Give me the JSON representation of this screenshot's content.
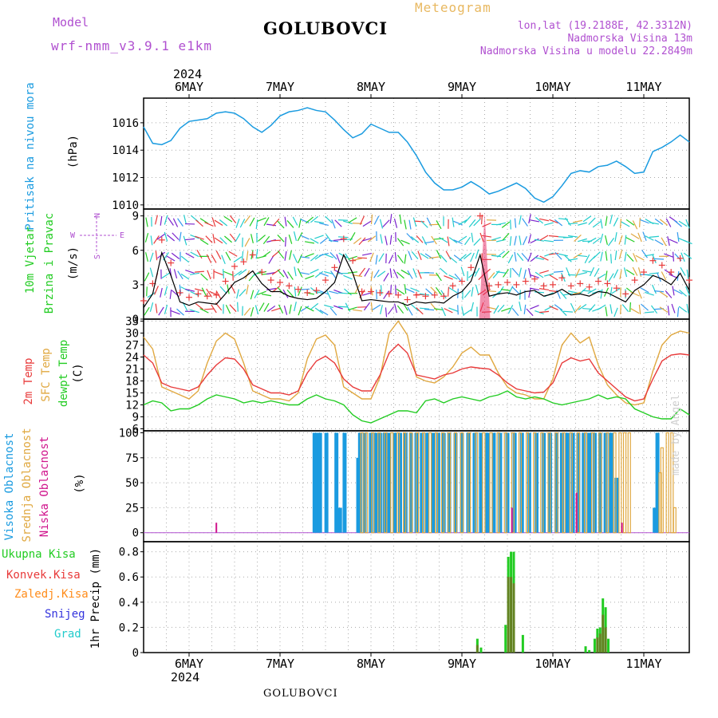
{
  "header": {
    "model_label": "Model",
    "model_name": "wrf-nmm_v3.9.1 e1km",
    "station": "GOLUBOVCI",
    "meteogram_label": "Meteogram",
    "lonlat": "lon,lat (19.2188E, 42.3312N)",
    "altitude": "Nadmorska Visina 13m",
    "model_altitude": "Nadmorska Visina u modelu 22.2849m",
    "year": "2024",
    "footer_station": "GOLUBOVCI",
    "watermark": "made by Angel"
  },
  "colors": {
    "pressure": "#1a9be0",
    "wind_speed": "#000000",
    "gust": "#e83a3a",
    "temp2m": "#e83a3a",
    "sfc_temp": "#e0a840",
    "dewpt": "#22cc22",
    "cloud_high": "#1a9be0",
    "cloud_mid": "#e0a840",
    "cloud_low": "#d0148c",
    "precip_total": "#22cc22",
    "precip_conv": "#e83a3a",
    "precip_frozen": "#ff8c1a",
    "precip_snow": "#3333dd",
    "precip_graupel": "#22cccc",
    "purple_text": "#b050d0",
    "gold_text": "#e8b860"
  },
  "chart_data": [
    {
      "type": "line",
      "name": "pressure",
      "ylabel_main": "Pritisak na nivou mora",
      "unit": "(hPa)",
      "ylim": [
        1009.7,
        1017.8
      ],
      "yticks": [
        1010,
        1012,
        1014,
        1016
      ],
      "x_days": [
        "6MAY",
        "7MAY",
        "8MAY",
        "9MAY",
        "10MAY",
        "11MAY"
      ],
      "x": [
        -0.5,
        -0.4,
        -0.3,
        -0.2,
        -0.1,
        0,
        0.1,
        0.2,
        0.3,
        0.4,
        0.5,
        0.6,
        0.7,
        0.8,
        0.9,
        1.0,
        1.1,
        1.2,
        1.3,
        1.4,
        1.5,
        1.6,
        1.7,
        1.8,
        1.9,
        2.0,
        2.1,
        2.2,
        2.3,
        2.4,
        2.5,
        2.6,
        2.7,
        2.8,
        2.9,
        3.0,
        3.1,
        3.2,
        3.3,
        3.4,
        3.5,
        3.6,
        3.7,
        3.8,
        3.9,
        4.0,
        4.1,
        4.2,
        4.3,
        4.4,
        4.5,
        4.6,
        4.7,
        4.8,
        4.9,
        5.0,
        5.1,
        5.2,
        5.3,
        5.4,
        5.5
      ],
      "values": [
        1015.7,
        1014.5,
        1014.4,
        1014.7,
        1015.6,
        1016.1,
        1016.2,
        1016.3,
        1016.7,
        1016.8,
        1016.7,
        1016.3,
        1015.7,
        1015.3,
        1015.8,
        1016.5,
        1016.8,
        1016.9,
        1017.1,
        1016.9,
        1016.8,
        1016.2,
        1015.5,
        1014.9,
        1015.2,
        1015.9,
        1015.6,
        1015.3,
        1015.3,
        1014.6,
        1013.6,
        1012.4,
        1011.6,
        1011.1,
        1011.1,
        1011.3,
        1011.7,
        1011.3,
        1010.8,
        1011.0,
        1011.3,
        1011.6,
        1011.2,
        1010.5,
        1010.2,
        1010.6,
        1011.4,
        1012.3,
        1012.5,
        1012.4,
        1012.8,
        1012.9,
        1013.2,
        1012.8,
        1012.3,
        1012.4,
        1013.9,
        1014.2,
        1014.6,
        1015.1,
        1014.6
      ]
    },
    {
      "type": "line",
      "name": "wind",
      "ylabel_main": "10m Vjetar",
      "ylabel_sub": "Brzina i Pravac",
      "unit": "(m/s)",
      "compass_n": "N",
      "compass_w": "W",
      "compass_e": "E",
      "compass_s": "S",
      "ylim": [
        0,
        9.6
      ],
      "yticks": [
        0,
        3,
        6,
        9
      ],
      "x": [
        -0.5,
        -0.4,
        -0.3,
        -0.2,
        -0.1,
        0,
        0.1,
        0.2,
        0.3,
        0.4,
        0.5,
        0.6,
        0.7,
        0.8,
        0.9,
        1.0,
        1.1,
        1.2,
        1.3,
        1.4,
        1.5,
        1.6,
        1.7,
        1.8,
        1.9,
        2.0,
        2.1,
        2.2,
        2.3,
        2.4,
        2.5,
        2.6,
        2.7,
        2.8,
        2.9,
        3.0,
        3.1,
        3.2,
        3.3,
        3.4,
        3.5,
        3.6,
        3.7,
        3.8,
        3.9,
        4.0,
        4.1,
        4.2,
        4.3,
        4.4,
        4.5,
        4.6,
        4.7,
        4.8,
        4.9,
        5.0,
        5.1,
        5.2,
        5.3,
        5.4,
        5.5
      ],
      "speed": [
        1.0,
        2.2,
        5.8,
        3.8,
        1.5,
        1.2,
        1.5,
        1.4,
        1.3,
        2.2,
        3.2,
        3.6,
        4.2,
        3.1,
        2.4,
        2.4,
        2.0,
        1.8,
        1.7,
        1.8,
        2.4,
        3.2,
        5.6,
        4.0,
        1.6,
        1.7,
        1.6,
        1.5,
        1.5,
        1.2,
        1.5,
        1.4,
        1.5,
        1.4,
        2.0,
        2.4,
        3.3,
        5.6,
        2.0,
        2.2,
        2.3,
        2.1,
        2.4,
        2.5,
        2.0,
        2.2,
        2.6,
        2.1,
        2.2,
        2.0,
        2.4,
        2.3,
        1.9,
        1.5,
        2.5,
        3.0,
        3.8,
        3.5,
        3.0,
        4.0,
        2.5
      ],
      "gust": [
        1.6,
        3.1,
        6.9,
        4.9,
        2.3,
        1.9,
        2.2,
        2.0,
        2.1,
        3.3,
        4.6,
        5.0,
        5.6,
        4.1,
        3.4,
        3.2,
        2.9,
        2.6,
        2.3,
        2.5,
        3.4,
        4.5,
        7.0,
        5.1,
        2.4,
        2.4,
        2.3,
        2.2,
        2.1,
        1.7,
        2.1,
        2.0,
        2.1,
        2.0,
        2.9,
        3.3,
        4.5,
        9.0,
        2.9,
        3.0,
        3.2,
        3.0,
        3.3,
        3.5,
        2.9,
        3.0,
        3.6,
        2.9,
        3.1,
        2.8,
        3.3,
        3.1,
        2.7,
        2.2,
        3.4,
        4.1,
        5.1,
        4.7,
        4.1,
        5.3,
        3.4
      ]
    },
    {
      "type": "line",
      "name": "temperature",
      "ylabel_a": "2m Temp",
      "ylabel_b": "SFC Temp",
      "ylabel_c": "dewpt Temp",
      "unit": "(C)",
      "ylim": [
        5.5,
        33.5
      ],
      "yticks": [
        6,
        9,
        12,
        15,
        18,
        21,
        24,
        27,
        30,
        33
      ],
      "x": [
        -0.5,
        -0.4,
        -0.3,
        -0.2,
        -0.1,
        0,
        0.1,
        0.2,
        0.3,
        0.4,
        0.5,
        0.6,
        0.7,
        0.8,
        0.9,
        1.0,
        1.1,
        1.2,
        1.3,
        1.4,
        1.5,
        1.6,
        1.7,
        1.8,
        1.9,
        2.0,
        2.1,
        2.2,
        2.3,
        2.4,
        2.5,
        2.6,
        2.7,
        2.8,
        2.9,
        3.0,
        3.1,
        3.2,
        3.3,
        3.4,
        3.5,
        3.6,
        3.7,
        3.8,
        3.9,
        4.0,
        4.1,
        4.2,
        4.3,
        4.4,
        4.5,
        4.6,
        4.7,
        4.8,
        4.9,
        5.0,
        5.1,
        5.2,
        5.3,
        5.4,
        5.5
      ],
      "temp2m": [
        24.5,
        22.5,
        17.5,
        16.5,
        16.0,
        15.5,
        16.5,
        19.5,
        22.0,
        23.8,
        23.5,
        21.0,
        17.0,
        16.0,
        15.0,
        15.0,
        14.5,
        15.5,
        20.0,
        23.0,
        24.2,
        22.5,
        18.5,
        16.5,
        15.5,
        15.5,
        19.5,
        25.0,
        27.2,
        25.0,
        19.5,
        19.0,
        18.5,
        19.5,
        20.0,
        21.0,
        21.5,
        21.2,
        21.0,
        19.5,
        17.5,
        16.0,
        15.5,
        15.0,
        15.2,
        17.5,
        22.5,
        23.8,
        23.0,
        23.5,
        20.0,
        18.0,
        16.0,
        14.0,
        13.0,
        13.5,
        18.5,
        23.0,
        24.5,
        24.8,
        24.5
      ],
      "sfc": [
        29.0,
        26.0,
        16.5,
        15.5,
        14.5,
        13.5,
        15.5,
        22.5,
        28.0,
        30.0,
        28.5,
        22.5,
        15.5,
        14.5,
        13.5,
        13.5,
        13.0,
        15.0,
        23.5,
        28.5,
        29.5,
        27.0,
        16.5,
        15.0,
        13.5,
        13.5,
        19.0,
        30.0,
        33.0,
        29.5,
        19.0,
        18.0,
        17.5,
        19.0,
        21.5,
        25.0,
        26.5,
        24.5,
        24.5,
        20.0,
        16.5,
        15.0,
        14.5,
        13.5,
        13.5,
        18.5,
        27.0,
        30.0,
        27.5,
        29.0,
        22.0,
        17.0,
        14.5,
        12.5,
        12.0,
        12.5,
        20.5,
        27.0,
        29.5,
        30.5,
        30.0
      ],
      "dewpt": [
        12.0,
        13.0,
        12.5,
        10.5,
        11.0,
        11.0,
        12.0,
        13.5,
        14.5,
        14.0,
        13.5,
        12.5,
        13.0,
        12.5,
        13.0,
        12.5,
        12.0,
        12.0,
        13.5,
        14.5,
        13.5,
        13.0,
        12.0,
        9.5,
        8.0,
        7.5,
        8.5,
        9.5,
        10.5,
        10.5,
        10.0,
        13.0,
        13.5,
        12.5,
        13.5,
        14.0,
        13.5,
        13.0,
        14.0,
        14.5,
        15.5,
        14.0,
        13.5,
        14.0,
        13.5,
        12.5,
        12.0,
        12.5,
        13.0,
        13.5,
        14.5,
        13.5,
        14.0,
        13.5,
        11.0,
        10.0,
        9.0,
        8.5,
        8.5,
        11.0,
        9.5
      ]
    },
    {
      "type": "bar",
      "name": "cloud_cover",
      "ylabel_a": "Visoka Oblacnost",
      "ylabel_b": "Srednja Oblacnost",
      "ylabel_c": "Niska Oblacnost",
      "unit": "(%)",
      "ylim": [
        -9,
        102
      ],
      "yticks": [
        0,
        25,
        50,
        75,
        100
      ],
      "high": [
        [
          1.38,
          100
        ],
        [
          1.41,
          100
        ],
        [
          1.44,
          100
        ],
        [
          1.51,
          100
        ],
        [
          1.62,
          100
        ],
        [
          1.66,
          25
        ],
        [
          1.71,
          100
        ],
        [
          1.86,
          75
        ],
        [
          1.88,
          100
        ],
        [
          1.93,
          100
        ],
        [
          2.0,
          100
        ],
        [
          2.05,
          100
        ],
        [
          2.1,
          100
        ],
        [
          2.15,
          100
        ],
        [
          2.2,
          100
        ],
        [
          2.26,
          100
        ],
        [
          2.32,
          100
        ],
        [
          2.38,
          100
        ],
        [
          2.44,
          100
        ],
        [
          2.5,
          100
        ],
        [
          2.56,
          100
        ],
        [
          2.62,
          100
        ],
        [
          2.68,
          100
        ],
        [
          2.74,
          100
        ],
        [
          2.8,
          100
        ],
        [
          2.86,
          100
        ],
        [
          2.93,
          100
        ],
        [
          3.0,
          100
        ],
        [
          3.07,
          100
        ],
        [
          3.14,
          100
        ],
        [
          3.21,
          100
        ],
        [
          3.28,
          100
        ],
        [
          3.35,
          100
        ],
        [
          3.42,
          100
        ],
        [
          3.5,
          100
        ],
        [
          3.58,
          100
        ],
        [
          3.66,
          100
        ],
        [
          3.74,
          100
        ],
        [
          3.82,
          100
        ],
        [
          3.9,
          100
        ],
        [
          3.97,
          100
        ],
        [
          4.04,
          100
        ],
        [
          4.1,
          100
        ],
        [
          4.16,
          100
        ],
        [
          4.22,
          100
        ],
        [
          4.28,
          100
        ],
        [
          4.34,
          100
        ],
        [
          4.4,
          100
        ],
        [
          4.46,
          100
        ],
        [
          4.52,
          100
        ],
        [
          4.58,
          100
        ],
        [
          4.64,
          100
        ],
        [
          4.7,
          55
        ],
        [
          5.12,
          25
        ],
        [
          5.15,
          100
        ]
      ],
      "mid": [
        [
          1.9,
          100
        ],
        [
          1.95,
          100
        ],
        [
          2.02,
          100
        ],
        [
          2.09,
          100
        ],
        [
          2.16,
          100
        ],
        [
          2.23,
          100
        ],
        [
          2.3,
          100
        ],
        [
          2.37,
          100
        ],
        [
          2.44,
          100
        ],
        [
          2.51,
          100
        ],
        [
          2.58,
          100
        ],
        [
          2.65,
          100
        ],
        [
          2.72,
          100
        ],
        [
          2.79,
          100
        ],
        [
          2.86,
          100
        ],
        [
          2.93,
          100
        ],
        [
          3.0,
          100
        ],
        [
          3.08,
          100
        ],
        [
          3.16,
          100
        ],
        [
          3.24,
          100
        ],
        [
          3.32,
          100
        ],
        [
          3.4,
          100
        ],
        [
          3.48,
          100
        ],
        [
          3.56,
          100
        ],
        [
          3.64,
          100
        ],
        [
          3.72,
          100
        ],
        [
          3.8,
          100
        ],
        [
          3.88,
          100
        ],
        [
          3.96,
          100
        ],
        [
          4.04,
          100
        ],
        [
          4.12,
          100
        ],
        [
          4.2,
          100
        ],
        [
          4.28,
          100
        ],
        [
          4.36,
          100
        ],
        [
          4.44,
          100
        ],
        [
          4.52,
          100
        ],
        [
          4.6,
          100
        ],
        [
          4.68,
          100
        ],
        [
          4.74,
          100
        ],
        [
          4.79,
          100
        ],
        [
          4.84,
          100
        ],
        [
          5.18,
          60
        ],
        [
          5.2,
          85
        ],
        [
          5.26,
          100
        ],
        [
          5.31,
          100
        ],
        [
          5.34,
          25
        ]
      ],
      "low": [
        [
          0.3,
          10
        ],
        [
          3.55,
          25
        ],
        [
          4.26,
          40
        ],
        [
          4.76,
          10
        ]
      ]
    },
    {
      "type": "bar",
      "name": "precipitation",
      "label_total": "Ukupna Kisa",
      "label_conv": "Konvek.Kisa",
      "label_frozen": "Zaledj.Kisa",
      "label_snow": "Snijeg",
      "label_graupel": "Grad",
      "unit": "1hr Precip (mm)",
      "ylim": [
        0,
        0.88
      ],
      "yticks": [
        0,
        0.2,
        0.4,
        0.6,
        0.8
      ],
      "x_days": [
        "6MAY",
        "7MAY",
        "8MAY",
        "9MAY",
        "10MAY",
        "11MAY"
      ],
      "total": [
        [
          3.17,
          0.11
        ],
        [
          3.21,
          0.04
        ],
        [
          3.48,
          0.22
        ],
        [
          3.51,
          0.76
        ],
        [
          3.54,
          0.8
        ],
        [
          3.57,
          0.8
        ],
        [
          3.67,
          0.14
        ],
        [
          4.36,
          0.05
        ],
        [
          4.4,
          0.02
        ],
        [
          4.46,
          0.11
        ],
        [
          4.49,
          0.19
        ],
        [
          4.52,
          0.2
        ],
        [
          4.55,
          0.43
        ],
        [
          4.58,
          0.36
        ],
        [
          4.61,
          0.11
        ]
      ],
      "conv": [
        [
          3.17,
          0.06
        ],
        [
          3.51,
          0.6
        ],
        [
          3.54,
          0.6
        ],
        [
          3.57,
          0.55
        ],
        [
          4.49,
          0.12
        ],
        [
          4.52,
          0.15
        ],
        [
          4.55,
          0.3
        ],
        [
          4.58,
          0.2
        ]
      ]
    }
  ]
}
